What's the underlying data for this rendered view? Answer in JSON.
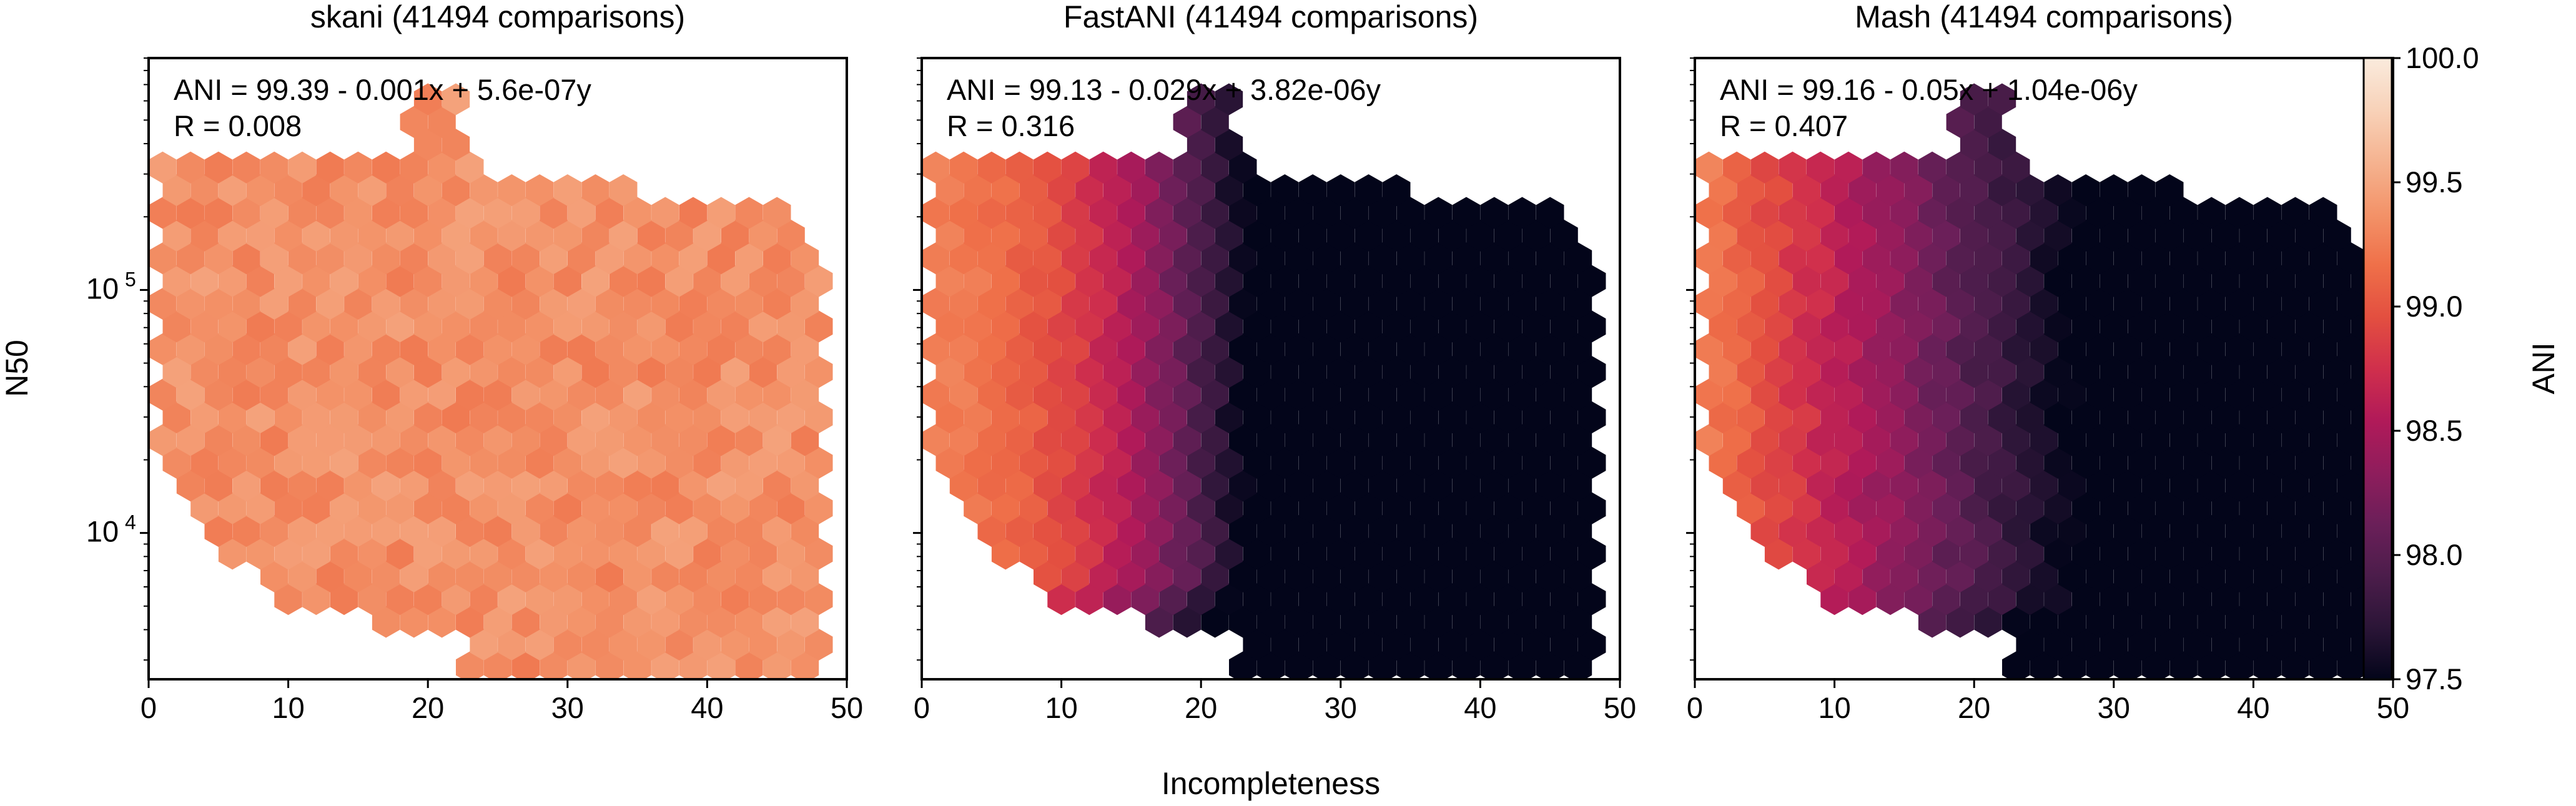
{
  "figure": {
    "xlabel": "Incompleteness",
    "ylabel": "N50",
    "colorbar_label": "ANI",
    "x_ticks": [
      "0",
      "10",
      "20",
      "30",
      "40",
      "50"
    ],
    "y_ticks": [
      "10",
      "10"
    ],
    "y_tick_exponents": [
      "4",
      "5"
    ],
    "colorbar_ticks": [
      "97.5",
      "98.0",
      "98.5",
      "99.0",
      "99.5",
      "100.0"
    ],
    "colormap": "rocket",
    "colormap_stops": [
      "#03051a",
      "#2b1537",
      "#4c1d4b",
      "#6b1f59",
      "#8f1d5c",
      "#b11a59",
      "#d02f4c",
      "#e34f40",
      "#ef7049",
      "#f39369",
      "#f5b390",
      "#f8d2b9",
      "#faebdd"
    ]
  },
  "chart_data": [
    {
      "type": "heatmap",
      "subtype": "hexbin",
      "title": "skani (41494 comparisons)",
      "annotation_line1": "ANI = 99.39 - 0.001x + 5.6e-07y",
      "annotation_line2": "R = 0.008",
      "xlabel": "Incompleteness",
      "ylabel": "N50",
      "xlim": [
        0,
        50
      ],
      "ylim": [
        2500,
        900000
      ],
      "yscale": "log",
      "color_range": [
        97.5,
        100.0
      ],
      "model": {
        "intercept": 99.39,
        "x_coef": -0.001,
        "y_coef": 5.6e-07
      },
      "r": 0.008
    },
    {
      "type": "heatmap",
      "subtype": "hexbin",
      "title": "FastANI (41494 comparisons)",
      "annotation_line1": "ANI = 99.13 - 0.029x + 3.82e-06y",
      "annotation_line2": "R = 0.316",
      "xlabel": "Incompleteness",
      "ylabel": "N50",
      "xlim": [
        0,
        50
      ],
      "ylim": [
        2500,
        900000
      ],
      "yscale": "log",
      "color_range": [
        97.5,
        100.0
      ],
      "model": {
        "intercept": 99.13,
        "x_coef": -0.029,
        "y_coef": 3.82e-06
      },
      "r": 0.316
    },
    {
      "type": "heatmap",
      "subtype": "hexbin",
      "title": "Mash (41494 comparisons)",
      "annotation_line1": "ANI = 99.16 - 0.05x + 1.04e-06y",
      "annotation_line2": "R = 0.407",
      "xlabel": "Incompleteness",
      "ylabel": "N50",
      "xlim": [
        0,
        50
      ],
      "ylim": [
        2500,
        900000
      ],
      "yscale": "log",
      "color_range": [
        97.5,
        100.0
      ],
      "model": {
        "intercept": 99.16,
        "x_coef": -0.05,
        "y_coef": 1.04e-06
      },
      "r": 0.407
    }
  ]
}
